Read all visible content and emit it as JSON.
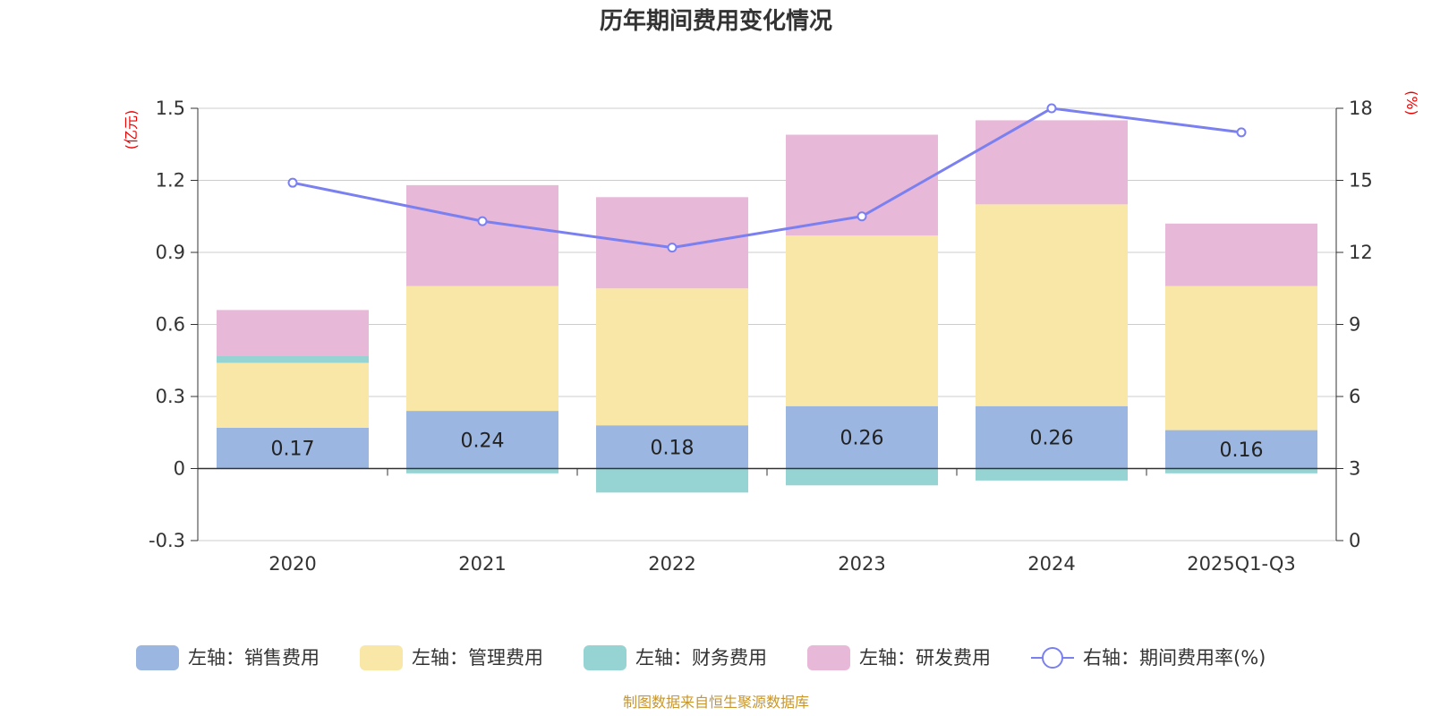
{
  "chart_data": {
    "type": "bar",
    "title": "历年期间费用变化情况",
    "categories": [
      "2020",
      "2021",
      "2022",
      "2023",
      "2024",
      "2025Q1-Q3"
    ],
    "series": [
      {
        "name": "左轴：销售费用",
        "axis": "left",
        "color": "#9bb6e0",
        "values": [
          0.17,
          0.24,
          0.18,
          0.26,
          0.26,
          0.16
        ],
        "labels": [
          "0.17",
          "0.24",
          "0.18",
          "0.26",
          "0.26",
          "0.16"
        ]
      },
      {
        "name": "左轴：管理费用",
        "axis": "left",
        "color": "#f9e7a8",
        "values": [
          0.27,
          0.52,
          0.57,
          0.71,
          0.84,
          0.6
        ]
      },
      {
        "name": "左轴：财务费用",
        "axis": "left",
        "color": "#96d4d4",
        "values": [
          0.03,
          -0.02,
          -0.1,
          -0.07,
          -0.05,
          -0.02
        ]
      },
      {
        "name": "左轴：研发费用",
        "axis": "left",
        "color": "#e8b8d8",
        "values": [
          0.19,
          0.42,
          0.38,
          0.42,
          0.35,
          0.26
        ]
      }
    ],
    "line_series": {
      "name": "右轴：期间费用率(%)",
      "axis": "right",
      "type": "line",
      "color": "#7b80f0",
      "values": [
        14.9,
        13.3,
        12.2,
        13.5,
        18.0,
        17.0
      ]
    },
    "left_axis": {
      "unit": "(亿元)",
      "ylim": [
        -0.3,
        1.5
      ],
      "ticks": [
        -0.3,
        0,
        0.3,
        0.6,
        0.9,
        1.2,
        1.5
      ],
      "tick_labels": [
        "-0.3",
        "0",
        "0.3",
        "0.6",
        "0.9",
        "1.2",
        "1.5"
      ]
    },
    "right_axis": {
      "unit": "(%)",
      "ylim": [
        0,
        18
      ],
      "ticks": [
        0,
        3,
        6,
        9,
        12,
        15,
        18
      ],
      "tick_labels": [
        "0",
        "3",
        "6",
        "9",
        "12",
        "15",
        "18"
      ]
    },
    "grid": true,
    "legend_position": "bottom",
    "source": "制图数据来自恒生聚源数据库"
  }
}
